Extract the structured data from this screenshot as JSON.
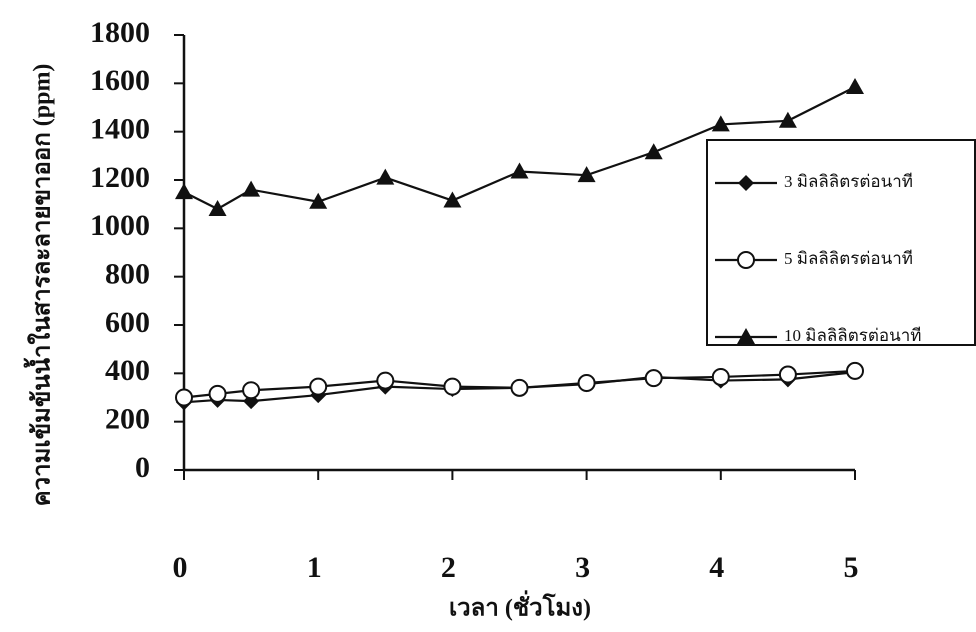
{
  "chart_data": {
    "type": "line",
    "x_label": "เวลา (ชั่วโมง)",
    "y_label": "ความเข้มข้นน้ำในสารละลายขาออก (ppm)",
    "x": [
      0,
      0.25,
      0.5,
      1,
      1.5,
      2,
      2.5,
      3,
      3.5,
      4,
      4.5,
      5
    ],
    "series": [
      {
        "name": "3 มิลลิลิตรต่อนาที",
        "color": "#111111",
        "marker": "diamond",
        "values": [
          280,
          290,
          285,
          310,
          345,
          335,
          340,
          355,
          385,
          370,
          375,
          405
        ]
      },
      {
        "name": "5 มิลลิลิตรต่อนาที",
        "color": "#111111",
        "marker": "circle",
        "values": [
          300,
          315,
          330,
          345,
          370,
          345,
          340,
          360,
          380,
          385,
          395,
          410
        ]
      },
      {
        "name": "10 มิลลิลิตรต่อนาที",
        "color": "#111111",
        "marker": "triangle",
        "values": [
          1150,
          1080,
          1160,
          1110,
          1210,
          1115,
          1235,
          1220,
          1315,
          1430,
          1445,
          1585
        ]
      }
    ],
    "xlim": [
      0,
      5
    ],
    "xticks": [
      0,
      1,
      2,
      3,
      4,
      5
    ],
    "ylim": [
      0,
      1800
    ],
    "yticks": [
      0,
      200,
      400,
      600,
      800,
      1000,
      1200,
      1400,
      1600,
      1800
    ],
    "grid": false,
    "legend": "right"
  }
}
